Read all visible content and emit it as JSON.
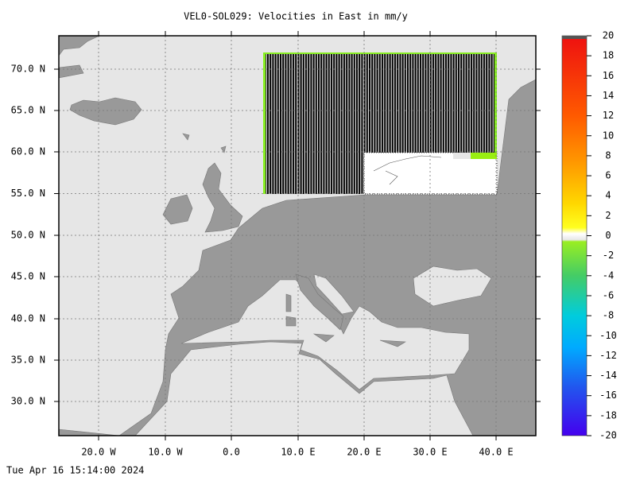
{
  "title": "VEL0-SOL029: Velocities in East in mm/y",
  "lat_labels": [
    "70.0 N",
    "65.0 N",
    "60.0 N",
    "55.0 N",
    "50.0 N",
    "45.0 N",
    "40.0 N",
    "35.0 N",
    "30.0 N"
  ],
  "lon_labels": [
    "20.0 W",
    "10.0 W",
    "0.0",
    "10.0 E",
    "20.0 E",
    "30.0 E",
    "40.0 E"
  ],
  "colorbar": {
    "ticks": [
      20,
      18,
      16,
      14,
      12,
      10,
      8,
      6,
      4,
      2,
      0,
      -2,
      -4,
      -6,
      -8,
      -10,
      -12,
      -14,
      -16,
      -18,
      -20
    ]
  },
  "timestamp": "Tue Apr 16 15:14:00 2024"
}
